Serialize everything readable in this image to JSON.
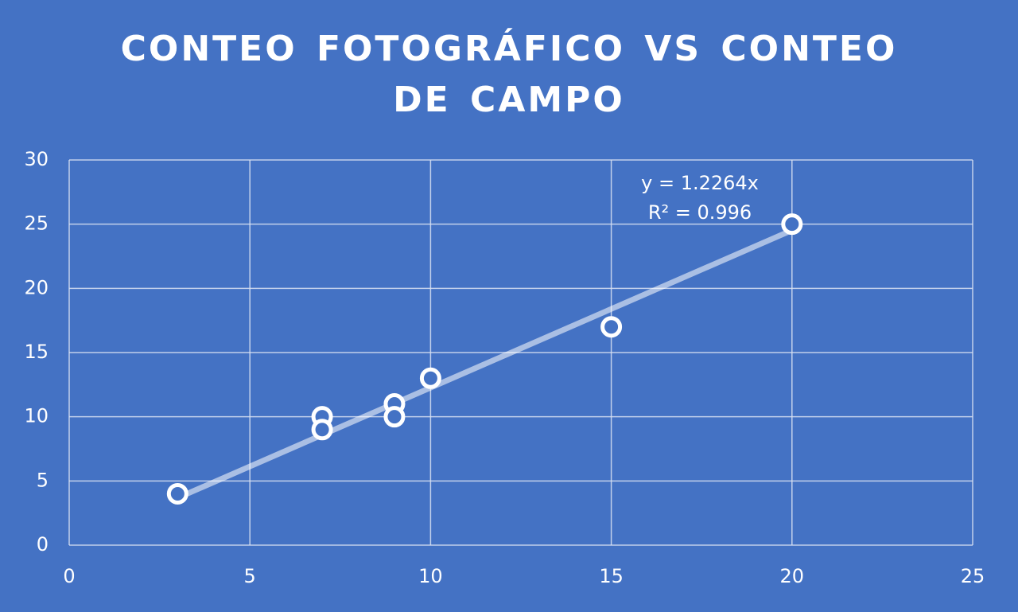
{
  "chart_data": {
    "type": "scatter",
    "title": "CONTEO FOTOGRÁFICO VS CONTEO DE CAMPO",
    "series": [
      {
        "x": [
          3,
          7,
          7,
          9,
          9,
          10,
          15,
          20
        ],
        "values": [
          4,
          10,
          9,
          11,
          10,
          13,
          17,
          25
        ],
        "color": "#ffffff"
      }
    ],
    "annotations": [
      "y = 1.2264x",
      "R² = 0.996"
    ],
    "trendline": true,
    "xlim": [
      0,
      25
    ],
    "xticks": [
      0,
      5,
      10,
      15,
      20,
      25
    ],
    "ylim": [
      0,
      30
    ],
    "yticks": [
      0,
      5,
      10,
      15,
      20,
      25,
      30
    ],
    "grid": true
  }
}
